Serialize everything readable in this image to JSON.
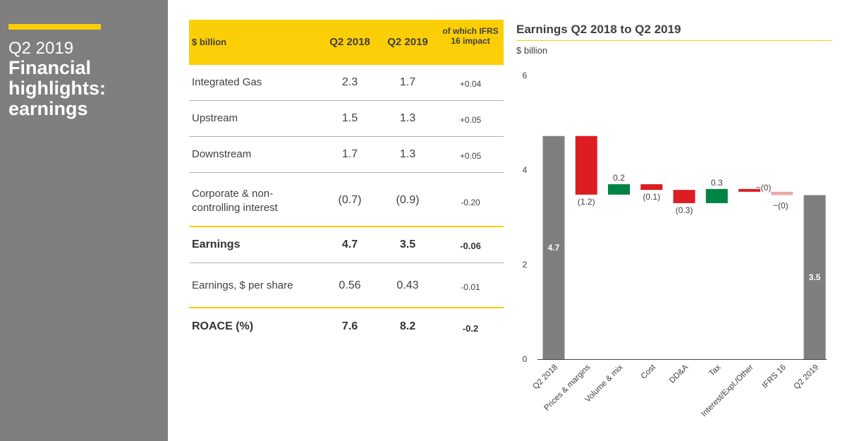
{
  "sidebar": {
    "period": "Q2 2019",
    "title": "Financial highlights: earnings"
  },
  "table": {
    "headers": [
      "$ billion",
      "Q2 2018",
      "Q2 2019",
      "of which IFRS 16 impact"
    ],
    "rows": [
      {
        "label": "Integrated Gas",
        "q2_2018": "2.3",
        "q2_2019": "1.7",
        "ifrs16": "+0.04"
      },
      {
        "label": "Upstream",
        "q2_2018": "1.5",
        "q2_2019": "1.3",
        "ifrs16": "+0.05"
      },
      {
        "label": "Downstream",
        "q2_2018": "1.7",
        "q2_2019": "1.3",
        "ifrs16": "+0.05"
      },
      {
        "label": "Corporate & non-controlling interest",
        "q2_2018": "(0.7)",
        "q2_2019": "(0.9)",
        "ifrs16": "-0.20"
      },
      {
        "label": "Earnings",
        "q2_2018": "4.7",
        "q2_2019": "3.5",
        "ifrs16": "-0.06"
      },
      {
        "label": "Earnings, $ per share",
        "q2_2018": "0.56",
        "q2_2019": "0.43",
        "ifrs16": "-0.01"
      },
      {
        "label": "ROACE (%)",
        "q2_2018": "7.6",
        "q2_2019": "8.2",
        "ifrs16": "-0.2"
      }
    ]
  },
  "chart_data": {
    "type": "bar",
    "subtype": "waterfall",
    "title": "Earnings Q2 2018 to Q2 2019",
    "ylabel": "$ billion",
    "ylim": [
      0,
      6
    ],
    "yticks": [
      0,
      2,
      4,
      6
    ],
    "categories": [
      "Q2 2018",
      "Prices & margins",
      "Volume & mix",
      "Cost",
      "DD&A",
      "Tax",
      "Interest/Expl./Other",
      "IFRS 16",
      "Q2 2019"
    ],
    "bars": [
      {
        "category": "Q2 2018",
        "kind": "total",
        "start": 0,
        "end": 4.72,
        "label": "4.7"
      },
      {
        "category": "Prices & margins",
        "kind": "decrease",
        "start": 4.72,
        "end": 3.48,
        "label": "(1.2)"
      },
      {
        "category": "Volume & mix",
        "kind": "increase",
        "start": 3.48,
        "end": 3.7,
        "label": "0.2"
      },
      {
        "category": "Cost",
        "kind": "decrease",
        "start": 3.7,
        "end": 3.58,
        "label": "(0.1)"
      },
      {
        "category": "DD&A",
        "kind": "decrease",
        "start": 3.58,
        "end": 3.3,
        "label": "(0.3)"
      },
      {
        "category": "Tax",
        "kind": "increase",
        "start": 3.3,
        "end": 3.6,
        "label": "0.3"
      },
      {
        "category": "Interest/Expl./Other",
        "kind": "decrease",
        "start": 3.6,
        "end": 3.54,
        "label": "~(0)"
      },
      {
        "category": "IFRS 16",
        "kind": "decrease-ifrs",
        "start": 3.54,
        "end": 3.47,
        "label": "~(0)"
      },
      {
        "category": "Q2 2019",
        "kind": "total",
        "start": 0,
        "end": 3.47,
        "label": "3.5"
      }
    ],
    "colors": {
      "total": "#7f7f7f",
      "increase": "#008443",
      "decrease": "#dd1d21",
      "decrease-ifrs": "#eba6a8",
      "accent": "#fbce07",
      "axis": "#404040"
    }
  }
}
